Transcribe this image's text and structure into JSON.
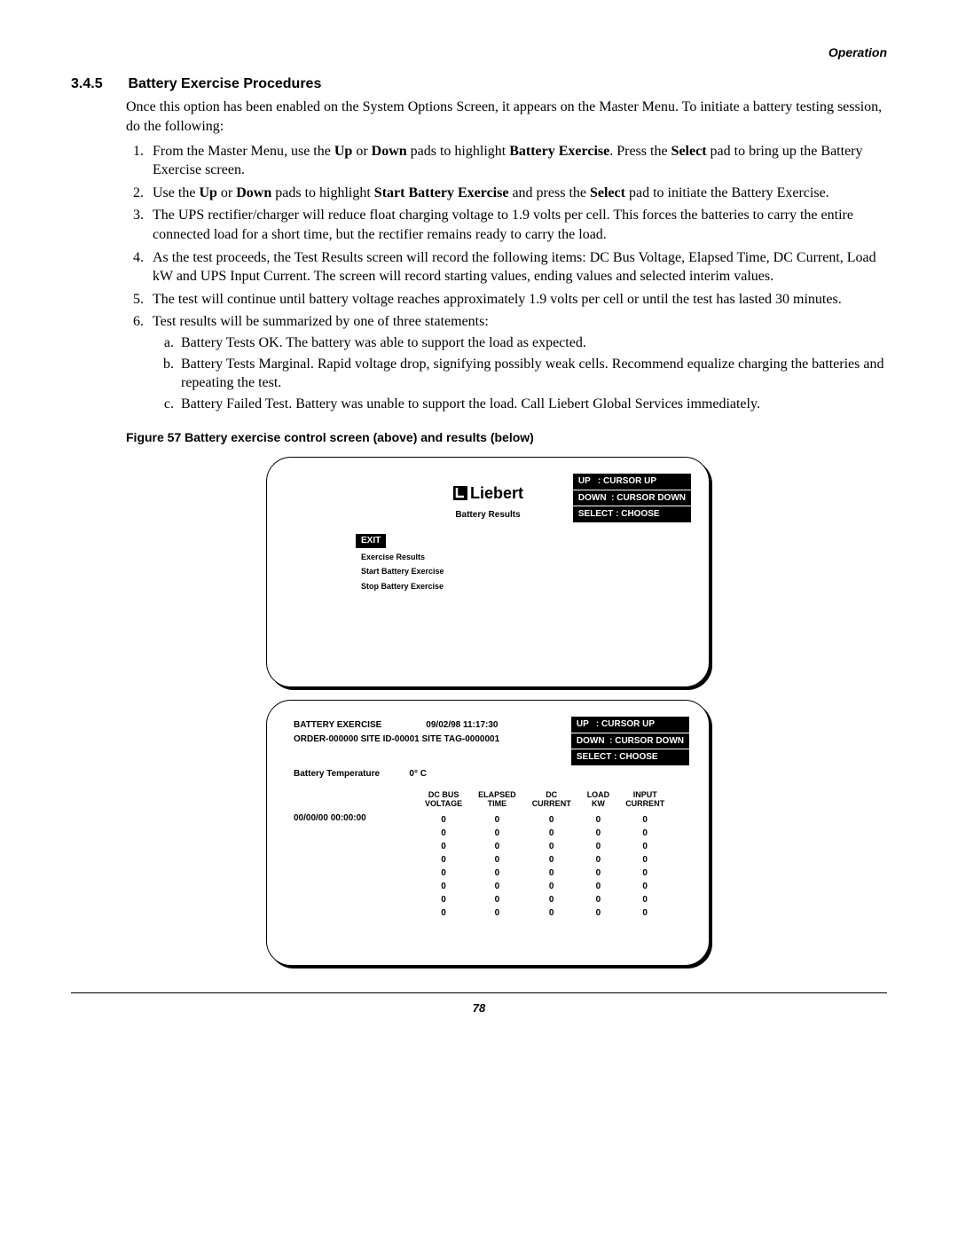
{
  "header": {
    "section": "Operation"
  },
  "section": {
    "number": "3.4.5",
    "title": "Battery Exercise Procedures",
    "intro": "Once this option has been enabled on the System Options Screen, it appears on the Master Menu. To initiate a battery testing session, do the following:"
  },
  "steps": {
    "s1": "From the Master Menu, use the Up or Down pads to highlight Battery Exercise. Press the Select pad to bring up the Battery Exercise screen.",
    "s2": "Use the Up or Down pads to highlight Start Battery Exercise and press the Select pad to initiate the Battery Exercise.",
    "s3": "The UPS rectifier/charger will reduce float charging voltage to 1.9 volts per cell. This forces the batteries to carry the entire connected load for a short time, but the rectifier remains ready to carry the load.",
    "s4": "As the test proceeds, the Test Results screen will record the following items: DC Bus Voltage, Elapsed Time, DC Current, Load kW and UPS Input Current. The screen will record starting values, ending values and selected interim values.",
    "s5": "The test will continue until battery voltage reaches approximately 1.9 volts per cell or until the test has lasted 30 minutes.",
    "s6": "Test results will be summarized by one of three statements:",
    "s6a": "Battery Tests OK. The battery was able to support the load as expected.",
    "s6b": "Battery Tests Marginal. Rapid voltage drop, signifying possibly weak cells. Recommend equalize charging the batteries and repeating the test.",
    "s6c": "Battery Failed Test. Battery was unable to support the load. Call Liebert Global Services immediately."
  },
  "figure": {
    "caption": "Figure 57  Battery exercise control screen (above) and results (below)"
  },
  "screen1": {
    "brand": "Liebert",
    "title": "Battery Results",
    "exit": "EXIT",
    "menu1": "Exercise Results",
    "menu2": "Start Battery Exercise",
    "menu3": "Stop Battery Exercise",
    "legend_up": "UP   : CURSOR UP",
    "legend_down": "DOWN  : CURSOR DOWN",
    "legend_select": "SELECT : CHOOSE"
  },
  "screen2": {
    "title": "BATTERY EXERCISE",
    "datetime": "09/02/98   11:17:30",
    "line2": "ORDER-000000    SITE ID-00001    SITE TAG-0000001",
    "temp_label": "Battery Temperature",
    "temp_value": "0° C",
    "ts": "00/00/00   00:00:00",
    "legend_up": "UP   : CURSOR UP",
    "legend_down": "DOWN  : CURSOR DOWN",
    "legend_select": "SELECT : CHOOSE",
    "cols": {
      "c1a": "DC BUS",
      "c1b": "VOLTAGE",
      "c2a": "ELAPSED",
      "c2b": "TIME",
      "c3a": "DC",
      "c3b": "CURRENT",
      "c4a": "LOAD",
      "c4b": "KW",
      "c5a": "INPUT",
      "c5b": "CURRENT"
    },
    "rows": [
      [
        "0",
        "0",
        "0",
        "0",
        "0"
      ],
      [
        "0",
        "0",
        "0",
        "0",
        "0"
      ],
      [
        "0",
        "0",
        "0",
        "0",
        "0"
      ],
      [
        "0",
        "0",
        "0",
        "0",
        "0"
      ],
      [
        "0",
        "0",
        "0",
        "0",
        "0"
      ],
      [
        "0",
        "0",
        "0",
        "0",
        "0"
      ],
      [
        "0",
        "0",
        "0",
        "0",
        "0"
      ],
      [
        "0",
        "0",
        "0",
        "0",
        "0"
      ]
    ]
  },
  "page": {
    "number": "78"
  }
}
